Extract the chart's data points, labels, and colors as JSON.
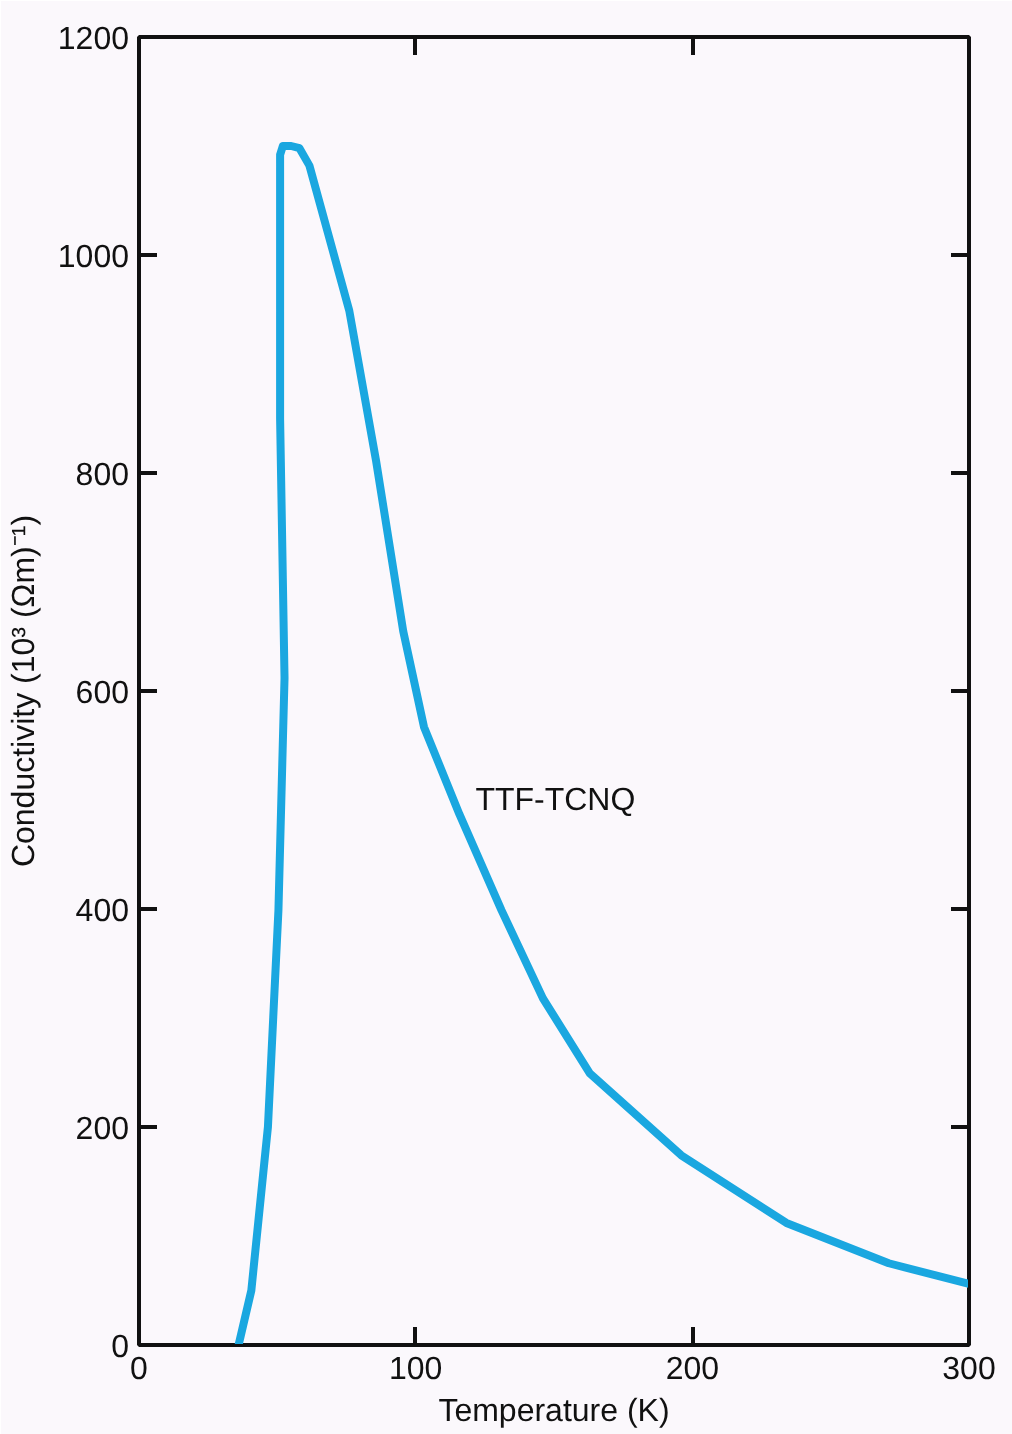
{
  "chart_data": {
    "type": "line",
    "xlabel": "Temperature (K)",
    "ylabel": "Conductivity (10³ (Ωm)⁻¹)",
    "xlim": [
      0,
      300
    ],
    "ylim": [
      0,
      1200
    ],
    "xticks": [
      0,
      100,
      200,
      300
    ],
    "yticks": [
      0,
      200,
      400,
      600,
      800,
      1000,
      1200
    ],
    "grid": false,
    "series": [
      {
        "name": "TTF-TCNQ",
        "color": "#1aa7e0",
        "x": [
          36,
          40.6,
          46.6,
          50.4,
          52.6,
          51,
          51,
          52,
          55,
          58,
          61.6,
          76,
          85.7,
          95.5,
          103,
          115.8,
          131,
          146,
          163,
          196,
          234,
          271,
          300
        ],
        "values": [
          0,
          50,
          200,
          399,
          612,
          850,
          1092,
          1100,
          1100,
          1098,
          1082,
          949,
          811,
          655,
          567,
          487,
          399,
          318,
          249,
          174,
          112,
          75,
          56
        ]
      }
    ]
  }
}
